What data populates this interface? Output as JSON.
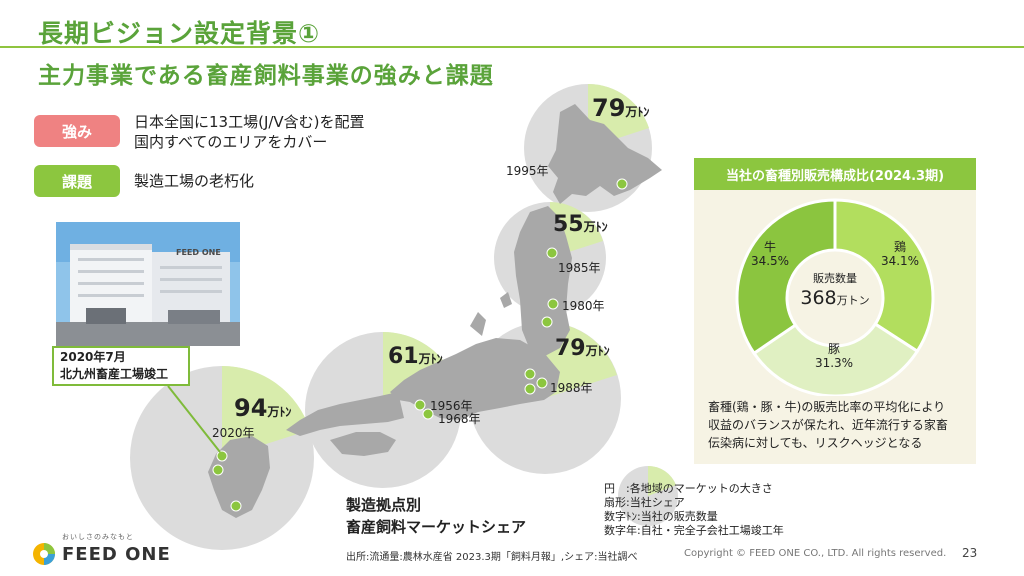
{
  "header": {
    "title": "長期ビジョン設定背景①",
    "subtitle": "主力事業である畜産飼料事業の強みと課題"
  },
  "strength": {
    "label": "強み",
    "line1": "日本全国に13工場(J/V含む)を配置",
    "line2": "国内すべてのエリアをカバー"
  },
  "challenge": {
    "label": "課題",
    "text": "製造工場の老朽化"
  },
  "photo": {
    "sign_text": "FEED ONE",
    "caption_line1": "2020年7月",
    "caption_line2": "北九州畜産工場竣工"
  },
  "map": {
    "unit": "万ﾄﾝ",
    "regions": [
      {
        "name": "hokkaido",
        "volume": "79",
        "share": 0.2,
        "year_labels": [
          "1995年"
        ]
      },
      {
        "name": "tohoku",
        "volume": "55",
        "share": 0.2,
        "year_labels": [
          "1985年",
          "1980年"
        ]
      },
      {
        "name": "kanto",
        "volume": "79",
        "share": 0.2,
        "year_labels": [
          "1988年"
        ]
      },
      {
        "name": "kinki",
        "volume": "61",
        "share": 0.15,
        "year_labels": [
          "1956年",
          "1968年"
        ]
      },
      {
        "name": "kyushu",
        "volume": "94",
        "share": 0.2,
        "year_labels": [
          "2020年"
        ]
      }
    ],
    "title_line1": "製造拠点別",
    "title_line2": "畜産飼料マーケットシェア"
  },
  "legend": {
    "line1": "円　:各地域のマーケットの大きさ",
    "line2": "扇形:当社シェア",
    "line3": "数字ﾄﾝ:当社の販売数量",
    "line4": "数字年:自社・完全子会社工場竣工年"
  },
  "chart_data": {
    "type": "pie",
    "title": "当社の畜種別販売構成比(2024.3期)",
    "categories": [
      "鶏",
      "豚",
      "牛"
    ],
    "values": [
      34.1,
      31.3,
      34.5
    ],
    "value_labels": [
      "34.1%",
      "31.3%",
      "34.5%"
    ],
    "center_label": "販売数量",
    "center_value": "368",
    "center_unit": "万トン",
    "colors": [
      "#b2de5e",
      "#e0f0c2",
      "#8bc53f"
    ]
  },
  "panel": {
    "text1": "畜種(鶏・豚・牛)の販売比率の平均化により",
    "text2": "収益のバランスが保たれ、近年流行する家畜",
    "text3": "伝染病に対しても、リスクヘッジとなる"
  },
  "footer": {
    "source": "出所:流通量:農林水産省 2023.3期「飼料月報」,シェア:当社調べ",
    "copyright": "Copyright © FEED ONE CO., LTD. All rights reserved.",
    "page_number": "23",
    "logo_tagline": "おいしさのみなもと",
    "logo_name": "FEED ONE"
  },
  "colors": {
    "accent": "#5aa33a",
    "circle": "#dcdcdc",
    "land": "#a9a9a9",
    "share": "#d8ecac",
    "dot": "#8cc63f"
  }
}
